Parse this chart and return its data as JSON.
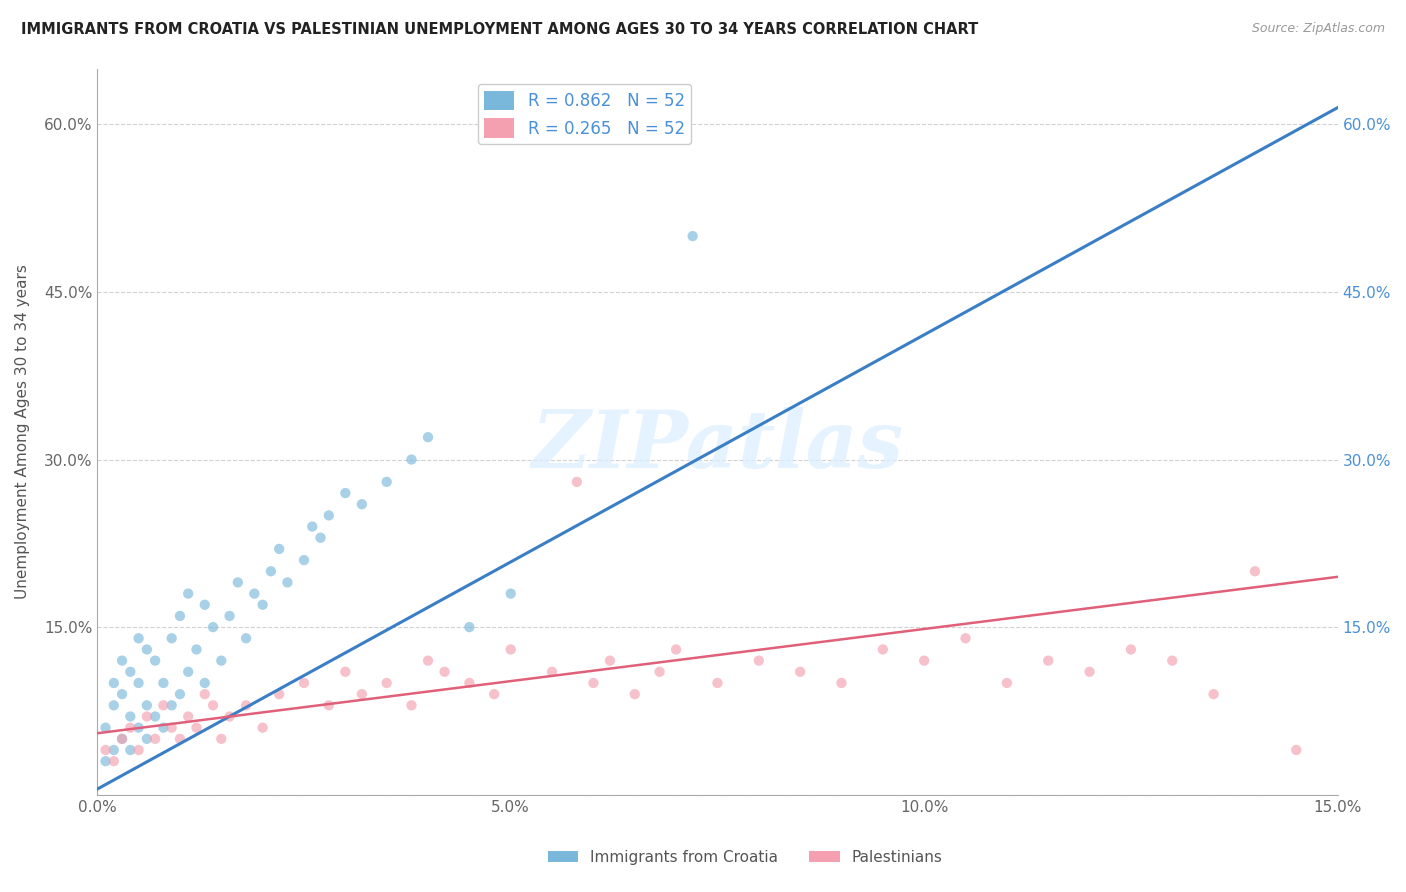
{
  "title": "IMMIGRANTS FROM CROATIA VS PALESTINIAN UNEMPLOYMENT AMONG AGES 30 TO 34 YEARS CORRELATION CHART",
  "source": "Source: ZipAtlas.com",
  "ylabel": "Unemployment Among Ages 30 to 34 years",
  "croatia_R": 0.862,
  "croatia_N": 52,
  "palest_R": 0.265,
  "palest_N": 52,
  "xlim": [
    0,
    0.15
  ],
  "ylim": [
    0,
    0.65
  ],
  "xticks": [
    0.0,
    0.05,
    0.1,
    0.15
  ],
  "xtick_labels": [
    "0.0%",
    "5.0%",
    "10.0%",
    "15.0%"
  ],
  "yticks": [
    0.0,
    0.15,
    0.3,
    0.45,
    0.6
  ],
  "ytick_labels": [
    "",
    "15.0%",
    "30.0%",
    "45.0%",
    "60.0%"
  ],
  "right_ytick_labels": [
    "15.0%",
    "30.0%",
    "45.0%",
    "60.0%"
  ],
  "croatia_color": "#7ab8db",
  "palest_color": "#f4a0b0",
  "line_croatia_color": "#3a7ec6",
  "line_palest_color": "#e0607a",
  "croatia_scatter_x": [
    0.001,
    0.001,
    0.002,
    0.002,
    0.002,
    0.003,
    0.003,
    0.003,
    0.004,
    0.004,
    0.004,
    0.005,
    0.005,
    0.005,
    0.006,
    0.006,
    0.006,
    0.007,
    0.007,
    0.008,
    0.008,
    0.009,
    0.009,
    0.01,
    0.01,
    0.011,
    0.011,
    0.012,
    0.013,
    0.013,
    0.014,
    0.015,
    0.016,
    0.017,
    0.018,
    0.019,
    0.02,
    0.021,
    0.022,
    0.023,
    0.025,
    0.026,
    0.027,
    0.028,
    0.03,
    0.032,
    0.035,
    0.038,
    0.04,
    0.045,
    0.05,
    0.072
  ],
  "croatia_scatter_y": [
    0.03,
    0.06,
    0.04,
    0.08,
    0.1,
    0.05,
    0.09,
    0.12,
    0.04,
    0.07,
    0.11,
    0.06,
    0.1,
    0.14,
    0.05,
    0.08,
    0.13,
    0.07,
    0.12,
    0.06,
    0.1,
    0.08,
    0.14,
    0.09,
    0.16,
    0.11,
    0.18,
    0.13,
    0.1,
    0.17,
    0.15,
    0.12,
    0.16,
    0.19,
    0.14,
    0.18,
    0.17,
    0.2,
    0.22,
    0.19,
    0.21,
    0.24,
    0.23,
    0.25,
    0.27,
    0.26,
    0.28,
    0.3,
    0.32,
    0.15,
    0.18,
    0.5
  ],
  "palest_scatter_x": [
    0.001,
    0.002,
    0.003,
    0.004,
    0.005,
    0.006,
    0.007,
    0.008,
    0.009,
    0.01,
    0.011,
    0.012,
    0.013,
    0.014,
    0.015,
    0.016,
    0.018,
    0.02,
    0.022,
    0.025,
    0.028,
    0.03,
    0.032,
    0.035,
    0.038,
    0.04,
    0.042,
    0.045,
    0.048,
    0.05,
    0.055,
    0.058,
    0.06,
    0.062,
    0.065,
    0.068,
    0.07,
    0.075,
    0.08,
    0.085,
    0.09,
    0.095,
    0.1,
    0.105,
    0.11,
    0.115,
    0.12,
    0.125,
    0.13,
    0.135,
    0.14,
    0.145
  ],
  "palest_scatter_y": [
    0.04,
    0.03,
    0.05,
    0.06,
    0.04,
    0.07,
    0.05,
    0.08,
    0.06,
    0.05,
    0.07,
    0.06,
    0.09,
    0.08,
    0.05,
    0.07,
    0.08,
    0.06,
    0.09,
    0.1,
    0.08,
    0.11,
    0.09,
    0.1,
    0.08,
    0.12,
    0.11,
    0.1,
    0.09,
    0.13,
    0.11,
    0.28,
    0.1,
    0.12,
    0.09,
    0.11,
    0.13,
    0.1,
    0.12,
    0.11,
    0.1,
    0.13,
    0.12,
    0.14,
    0.1,
    0.12,
    0.11,
    0.13,
    0.12,
    0.09,
    0.2,
    0.04
  ],
  "croatia_line_x": [
    0.0,
    0.15
  ],
  "croatia_line_y": [
    0.005,
    0.615
  ],
  "palest_line_x": [
    0.0,
    0.15
  ],
  "palest_line_y": [
    0.055,
    0.195
  ]
}
